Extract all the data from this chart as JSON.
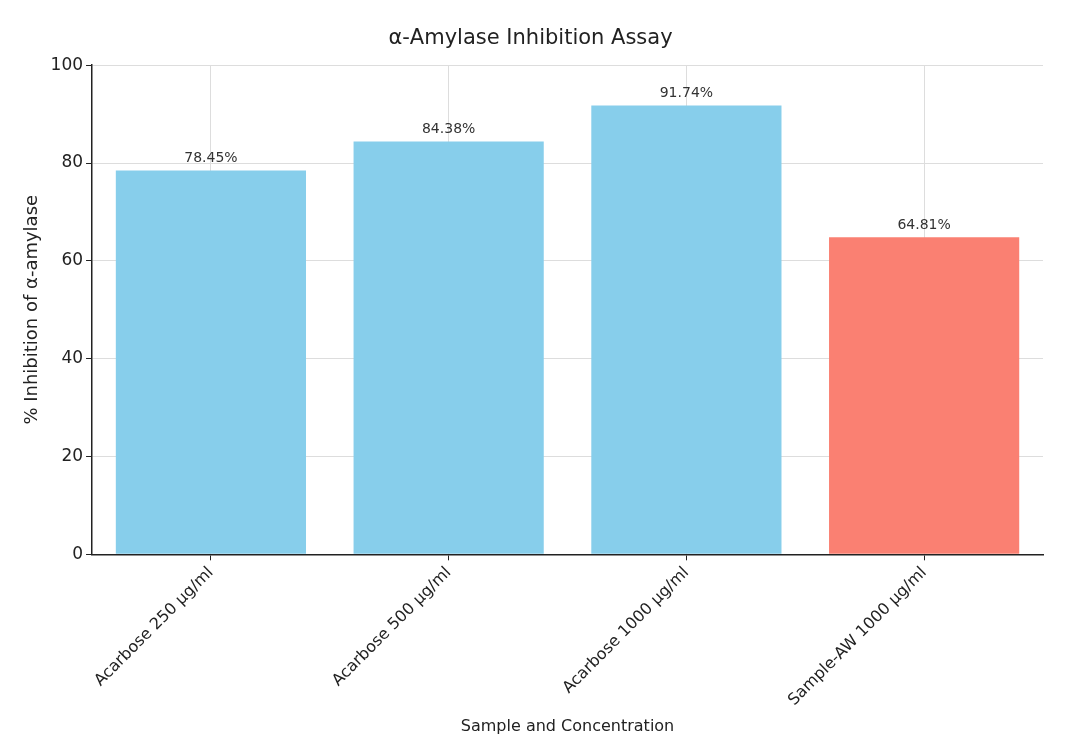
{
  "chart_data": {
    "type": "bar",
    "title": "α-Amylase Inhibition Assay",
    "xlabel": "Sample and Concentration",
    "ylabel": "% Inhibition of α-amylase",
    "categories": [
      "Acarbose 250 µg/ml",
      "Acarbose 500 µg/ml",
      "Acarbose 1000 µg/ml",
      "Sample-AW 1000 µg/ml"
    ],
    "values": [
      78.45,
      84.38,
      91.74,
      64.81
    ],
    "colors": [
      "#87ceeb",
      "#87ceeb",
      "#87ceeb",
      "#fa8072"
    ],
    "value_labels": [
      "78.45%",
      "84.38%",
      "91.74%",
      "64.81%"
    ],
    "ylim": [
      0,
      100
    ],
    "yticks": [
      0,
      20,
      40,
      60,
      80,
      100
    ],
    "grid": true,
    "legend": false
  }
}
